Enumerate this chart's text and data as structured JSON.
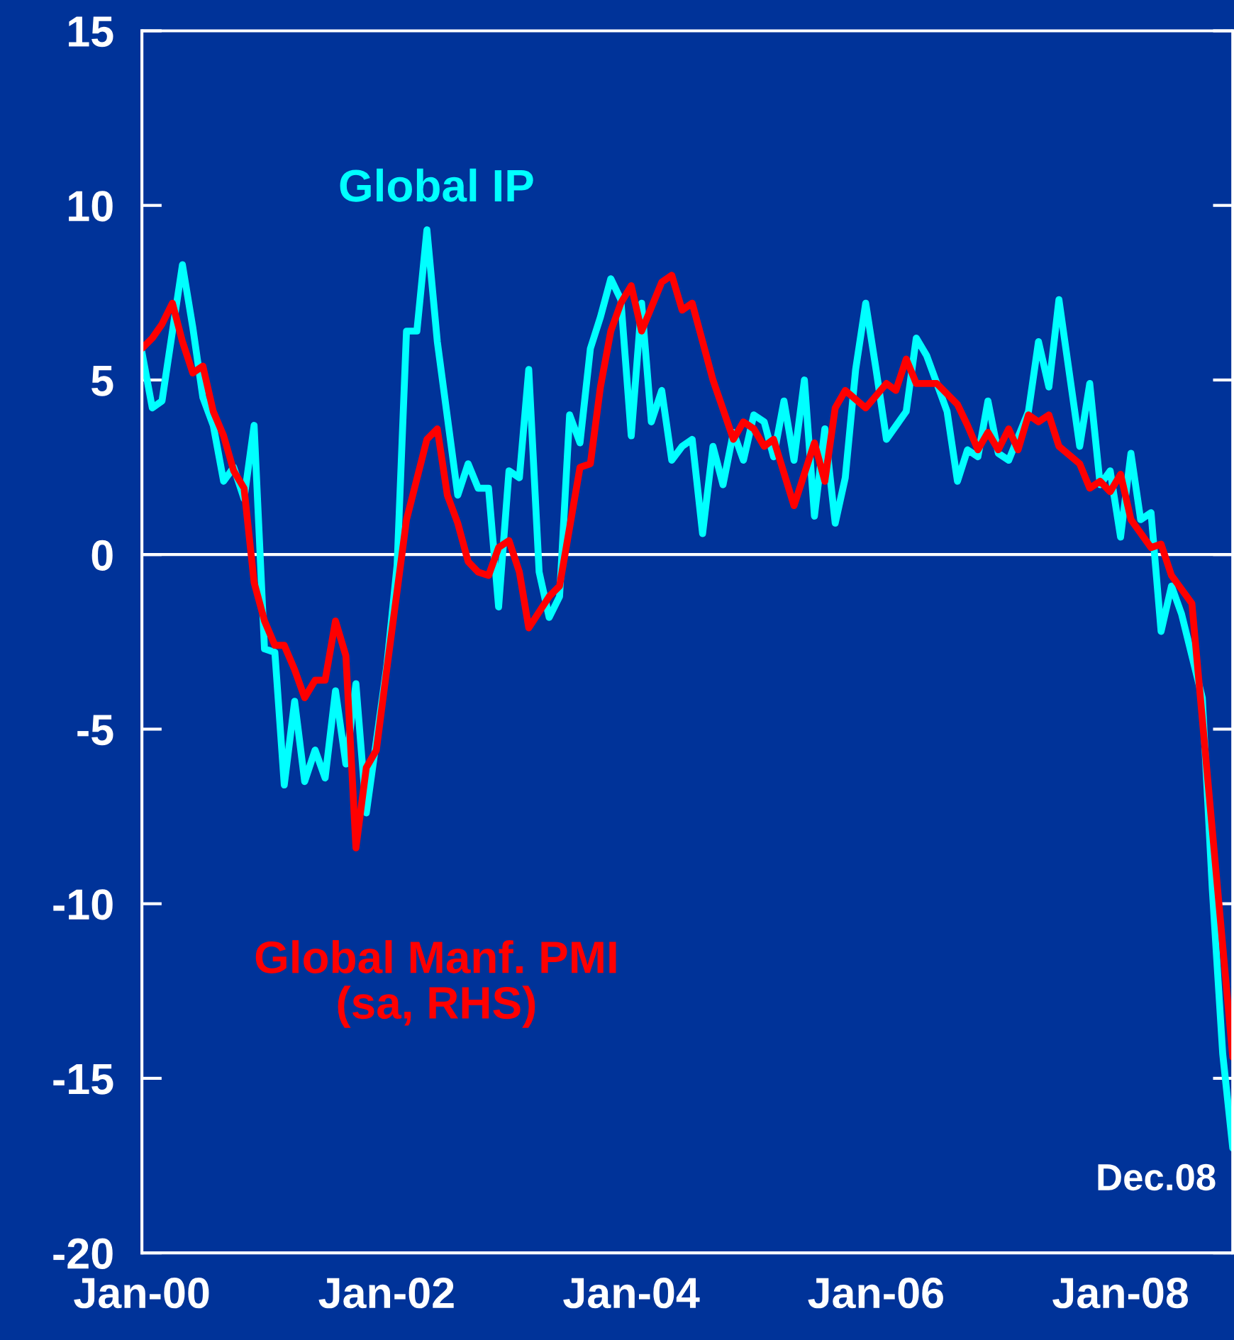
{
  "chart_data": {
    "type": "line",
    "annotations": [
      "Dec.08"
    ],
    "xlim": [
      "2000-01",
      "2008-12"
    ],
    "xticks": [
      {
        "value": "2000-01",
        "label": "Jan-00"
      },
      {
        "value": "2002-01",
        "label": "Jan-02"
      },
      {
        "value": "2004-01",
        "label": "Jan-04"
      },
      {
        "value": "2006-01",
        "label": "Jan-06"
      },
      {
        "value": "2008-01",
        "label": "Jan-08"
      }
    ],
    "ylim": [
      -20,
      15
    ],
    "yticks": [
      -20,
      -15,
      -10,
      -5,
      0,
      5,
      10,
      15
    ],
    "ref_lines": [
      {
        "axis": "y",
        "value": 0,
        "color": "#ffffff"
      }
    ],
    "grid": false,
    "legend": false,
    "marker": "none",
    "line_style": "solid",
    "series": [
      {
        "name": "Global IP",
        "color": "#00ffff",
        "x": [
          "2000-01",
          "2000-02",
          "2000-03",
          "2000-05",
          "2000-06",
          "2000-07",
          "2000-08",
          "2000-09",
          "2000-10",
          "2000-11",
          "2000-12",
          "2001-01",
          "2001-02",
          "2001-03",
          "2001-04",
          "2001-05",
          "2001-06",
          "2001-07",
          "2001-08",
          "2001-09",
          "2001-10",
          "2001-11",
          "2002-01",
          "2002-02",
          "2002-03",
          "2002-04",
          "2002-05",
          "2002-06",
          "2002-08",
          "2002-09",
          "2002-10",
          "2002-11",
          "2002-12",
          "2003-01",
          "2003-02",
          "2003-03",
          "2003-04",
          "2003-05",
          "2003-06",
          "2003-07",
          "2003-08",
          "2003-09",
          "2003-10",
          "2003-11",
          "2003-12",
          "2004-01",
          "2004-02",
          "2004-03",
          "2004-04",
          "2004-05",
          "2004-06",
          "2004-07",
          "2004-08",
          "2004-09",
          "2004-10",
          "2004-11",
          "2004-12",
          "2005-01",
          "2005-02",
          "2005-03",
          "2005-04",
          "2005-05",
          "2005-06",
          "2005-07",
          "2005-08",
          "2005-09",
          "2005-10",
          "2005-11",
          "2005-12",
          "2006-01",
          "2006-02",
          "2006-04",
          "2006-05",
          "2006-06",
          "2006-08",
          "2006-09",
          "2006-10",
          "2006-11",
          "2006-12",
          "2007-01",
          "2007-02",
          "2007-04",
          "2007-05",
          "2007-06",
          "2007-07",
          "2007-09",
          "2007-10",
          "2007-11",
          "2007-12",
          "2008-01",
          "2008-02",
          "2008-03",
          "2008-04",
          "2008-05",
          "2008-06",
          "2008-07",
          "2008-09",
          "2008-10",
          "2008-11",
          "2008-12"
        ],
        "values": [
          5.8,
          4.2,
          4.4,
          8.3,
          6.5,
          4.5,
          3.7,
          2.1,
          2.5,
          1.6,
          3.7,
          -2.7,
          -2.8,
          -6.6,
          -4.2,
          -6.5,
          -5.6,
          -6.4,
          -3.9,
          -6.0,
          -3.7,
          -7.4,
          -3.2,
          -0.3,
          6.4,
          6.4,
          9.3,
          6.1,
          1.7,
          2.6,
          1.9,
          1.9,
          -1.5,
          2.4,
          2.2,
          5.3,
          -0.5,
          -1.8,
          -1.2,
          4.0,
          3.2,
          5.9,
          6.8,
          7.9,
          7.3,
          3.4,
          7.2,
          3.8,
          4.7,
          2.7,
          3.1,
          3.3,
          0.6,
          3.1,
          2.0,
          3.5,
          2.7,
          4.0,
          3.8,
          2.8,
          4.4,
          2.7,
          5.0,
          1.1,
          3.6,
          0.9,
          2.2,
          5.3,
          7.2,
          5.3,
          3.3,
          4.1,
          6.2,
          5.7,
          4.1,
          2.1,
          3.0,
          2.8,
          4.4,
          2.9,
          2.7,
          4.1,
          6.1,
          4.8,
          7.3,
          3.1,
          4.9,
          2.0,
          2.4,
          0.5,
          2.9,
          1.0,
          1.2,
          -2.2,
          -0.9,
          -1.7,
          -4.1,
          -9.6,
          -14.3,
          -17.0
        ]
      },
      {
        "name": "Global Manf. PMI\n(sa, RHS)",
        "color": "#ff0000",
        "x": [
          "2000-01",
          "2000-02",
          "2000-03",
          "2000-04",
          "2000-05",
          "2000-06",
          "2000-07",
          "2000-08",
          "2000-09",
          "2000-10",
          "2000-11",
          "2000-12",
          "2001-01",
          "2001-02",
          "2001-03",
          "2001-04",
          "2001-05",
          "2001-06",
          "2001-07",
          "2001-08",
          "2001-09",
          "2001-10",
          "2001-11",
          "2001-12",
          "2002-01",
          "2002-03",
          "2002-05",
          "2002-06",
          "2002-07",
          "2002-08",
          "2002-09",
          "2002-10",
          "2002-11",
          "2002-12",
          "2003-01",
          "2003-02",
          "2003-03",
          "2003-05",
          "2003-06",
          "2003-08",
          "2003-09",
          "2003-10",
          "2003-11",
          "2003-12",
          "2004-01",
          "2004-02",
          "2004-04",
          "2004-05",
          "2004-06",
          "2004-07",
          "2004-09",
          "2004-11",
          "2004-12",
          "2005-01",
          "2005-02",
          "2005-03",
          "2005-05",
          "2005-07",
          "2005-08",
          "2005-09",
          "2005-10",
          "2005-12",
          "2006-02",
          "2006-03",
          "2006-04",
          "2006-05",
          "2006-07",
          "2006-09",
          "2006-10",
          "2006-11",
          "2006-12",
          "2007-01",
          "2007-02",
          "2007-03",
          "2007-04",
          "2007-05",
          "2007-06",
          "2007-07",
          "2007-09",
          "2007-10",
          "2007-11",
          "2007-12",
          "2008-01",
          "2008-02",
          "2008-04",
          "2008-05",
          "2008-06",
          "2008-08",
          "2008-12"
        ],
        "values": [
          5.9,
          6.2,
          6.6,
          7.2,
          6.1,
          5.2,
          5.4,
          4.1,
          3.4,
          2.4,
          1.9,
          -0.8,
          -1.9,
          -2.6,
          -2.6,
          -3.3,
          -4.1,
          -3.6,
          -3.6,
          -1.9,
          -2.9,
          -8.4,
          -6.1,
          -5.6,
          -3.3,
          1.0,
          3.3,
          3.6,
          1.7,
          0.9,
          -0.2,
          -0.5,
          -0.6,
          0.2,
          0.4,
          -0.5,
          -2.1,
          -1.2,
          -0.9,
          2.5,
          2.6,
          4.8,
          6.4,
          7.2,
          7.7,
          6.4,
          7.8,
          8.0,
          7.0,
          7.2,
          5.0,
          3.3,
          3.8,
          3.6,
          3.1,
          3.3,
          1.4,
          3.2,
          2.1,
          4.2,
          4.7,
          4.2,
          4.9,
          4.7,
          5.6,
          4.9,
          4.9,
          4.3,
          3.7,
          3.0,
          3.5,
          3.0,
          3.6,
          3.0,
          4.0,
          3.8,
          4.0,
          3.1,
          2.6,
          1.9,
          2.1,
          1.8,
          2.3,
          1.0,
          0.2,
          0.3,
          -0.6,
          -1.4,
          -14.4
        ]
      }
    ]
  }
}
